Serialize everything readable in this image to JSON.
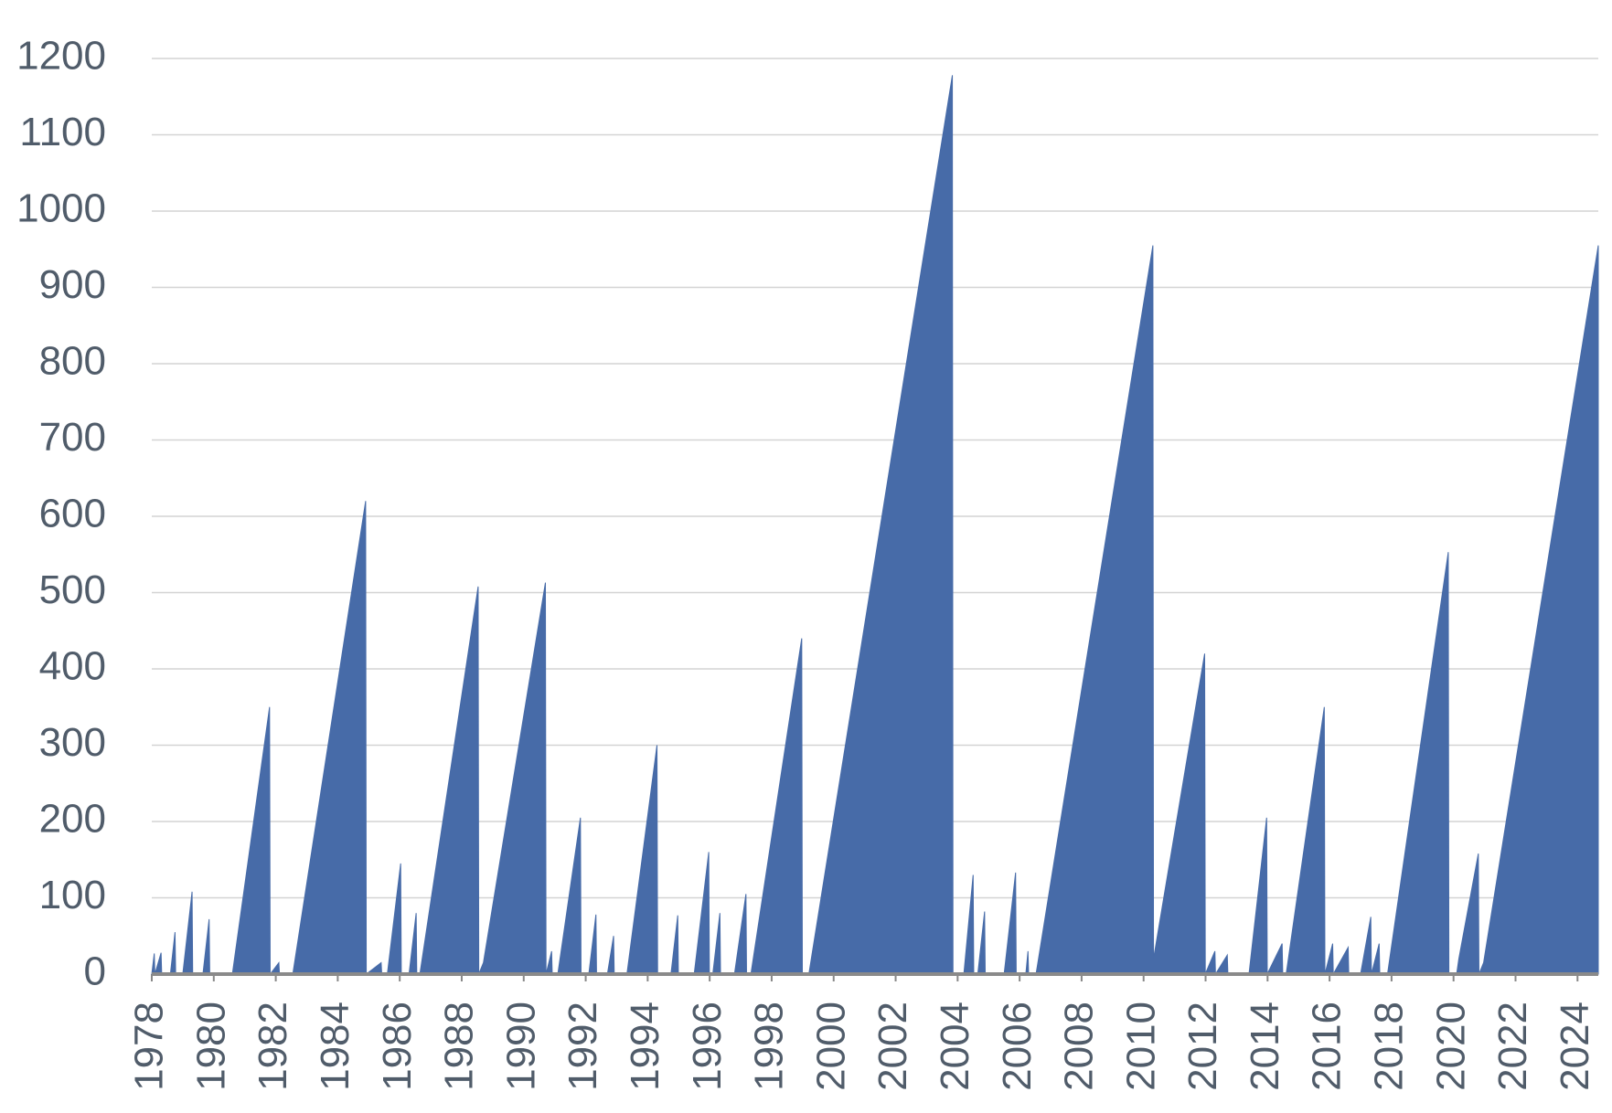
{
  "chart_data": {
    "type": "area",
    "color": "#476ba8",
    "grid": true,
    "xlim": [
      1978,
      2024.67
    ],
    "ylim": [
      0,
      1200
    ],
    "xticks": [
      1978,
      1980,
      1982,
      1984,
      1986,
      1988,
      1990,
      1992,
      1994,
      1996,
      1998,
      2000,
      2002,
      2004,
      2006,
      2008,
      2010,
      2012,
      2014,
      2016,
      2018,
      2020,
      2022,
      2024
    ],
    "yticks": [
      0,
      100,
      200,
      300,
      400,
      500,
      600,
      700,
      800,
      900,
      1000,
      1100,
      1200
    ],
    "x": [
      1978,
      1978.08,
      1978.1,
      1978.3,
      1978.32,
      1978.6,
      1978.75,
      1978.77,
      1979.0,
      1979.3,
      1979.32,
      1979.65,
      1979.85,
      1979.87,
      1980.6,
      1981.8,
      1981.82,
      1982.1,
      1982.12,
      1982.55,
      1984.9,
      1984.92,
      1985.4,
      1985.42,
      1985.6,
      1986.03,
      1986.05,
      1986.3,
      1986.53,
      1986.55,
      1986.65,
      1988.53,
      1988.55,
      1988.7,
      1990.7,
      1990.72,
      1990.9,
      1990.92,
      1991.1,
      1991.83,
      1991.85,
      1992.1,
      1992.33,
      1992.35,
      1992.7,
      1992.9,
      1992.92,
      1993.33,
      1994.3,
      1994.32,
      1994.75,
      1994.97,
      1994.99,
      1995.5,
      1995.97,
      1995.99,
      1996.1,
      1996.33,
      1996.35,
      1996.8,
      1997.17,
      1997.19,
      1997.33,
      1998.97,
      1998.99,
      1999.2,
      2003.83,
      2003.85,
      2004.2,
      2004.5,
      2004.52,
      2004.65,
      2004.87,
      2004.89,
      2005.5,
      2005.87,
      2005.89,
      2006.2,
      2006.27,
      2006.29,
      2006.53,
      2010.3,
      2010.32,
      2011.97,
      2011.99,
      2012.3,
      2012.32,
      2012.7,
      2012.72,
      2013.4,
      2013.97,
      2013.99,
      2014.47,
      2014.49,
      2014.6,
      2015.83,
      2015.85,
      2016.1,
      2016.12,
      2016.6,
      2016.62,
      2017.0,
      2017.33,
      2017.35,
      2017.6,
      2017.62,
      2017.87,
      2019.83,
      2019.85,
      2020.1,
      2020.17,
      2020.8,
      2020.82,
      2020.97,
      2024.67
    ],
    "values": [
      0,
      27,
      0,
      28,
      0,
      0,
      55,
      0,
      0,
      108,
      0,
      0,
      72,
      0,
      0,
      350,
      0,
      15,
      0,
      0,
      620,
      0,
      15,
      0,
      0,
      145,
      0,
      0,
      80,
      0,
      0,
      508,
      0,
      15,
      513,
      0,
      30,
      0,
      0,
      205,
      0,
      0,
      78,
      0,
      0,
      50,
      0,
      0,
      300,
      0,
      0,
      77,
      0,
      0,
      160,
      0,
      0,
      80,
      0,
      0,
      105,
      0,
      0,
      440,
      0,
      0,
      1178,
      0,
      0,
      130,
      0,
      0,
      82,
      0,
      0,
      133,
      0,
      0,
      30,
      0,
      0,
      955,
      20,
      420,
      0,
      30,
      0,
      25,
      0,
      0,
      205,
      0,
      40,
      0,
      0,
      350,
      0,
      40,
      0,
      35,
      0,
      0,
      75,
      0,
      40,
      0,
      0,
      553,
      0,
      0,
      20,
      158,
      0,
      15,
      955
    ]
  }
}
